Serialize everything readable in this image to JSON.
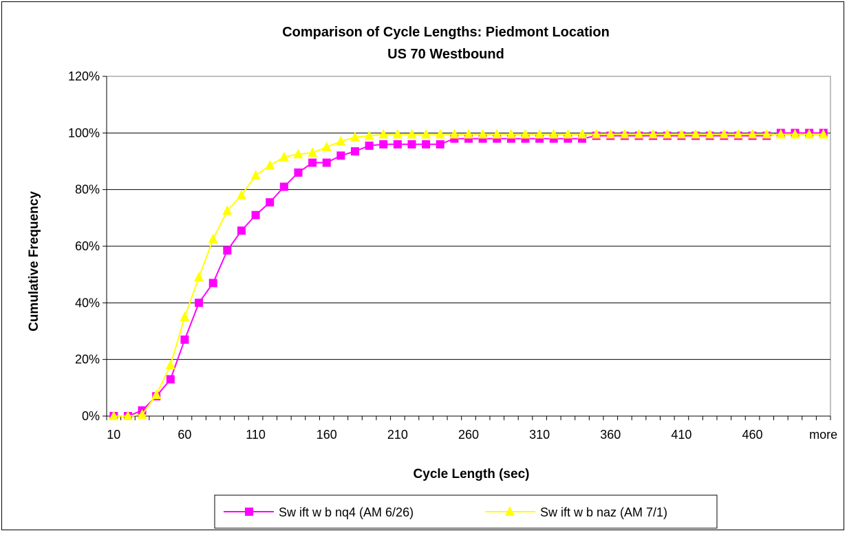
{
  "chart_data": {
    "type": "line",
    "title": "Comparison of Cycle Lengths: Piedmont Location",
    "subtitle": "US 70 Westbound",
    "xlabel": "Cycle Length (sec)",
    "ylabel": "Cumulative Frequency",
    "categories": [
      "10",
      "20",
      "30",
      "40",
      "50",
      "60",
      "70",
      "80",
      "90",
      "100",
      "110",
      "120",
      "130",
      "140",
      "150",
      "160",
      "170",
      "180",
      "190",
      "200",
      "210",
      "220",
      "230",
      "240",
      "250",
      "260",
      "270",
      "280",
      "290",
      "300",
      "310",
      "320",
      "330",
      "340",
      "350",
      "360",
      "370",
      "380",
      "390",
      "400",
      "410",
      "420",
      "430",
      "440",
      "450",
      "460",
      "470",
      "480",
      "490",
      "500",
      "more"
    ],
    "x_tick_labels": [
      "10",
      "60",
      "110",
      "160",
      "210",
      "260",
      "310",
      "360",
      "410",
      "460",
      "more"
    ],
    "y_tick_labels": [
      "0%",
      "20%",
      "40%",
      "60%",
      "80%",
      "100%",
      "120%"
    ],
    "ylim": [
      0,
      1.2
    ],
    "grid": "horizontal",
    "legend_position": "bottom",
    "series": [
      {
        "name": "Swift w b nq4 (AM 6/26)",
        "color": "#ff00ff",
        "marker": "square",
        "values": [
          0,
          0,
          0.02,
          0.07,
          0.13,
          0.27,
          0.4,
          0.47,
          0.585,
          0.655,
          0.71,
          0.755,
          0.81,
          0.86,
          0.895,
          0.895,
          0.92,
          0.935,
          0.955,
          0.96,
          0.96,
          0.96,
          0.96,
          0.96,
          0.98,
          0.98,
          0.98,
          0.98,
          0.98,
          0.98,
          0.98,
          0.98,
          0.98,
          0.98,
          0.99,
          0.99,
          0.99,
          0.99,
          0.99,
          0.99,
          0.99,
          0.99,
          0.99,
          0.99,
          0.99,
          0.99,
          0.99,
          1.0,
          1.0,
          1.0,
          1.0
        ]
      },
      {
        "name": "Sw ift w b naz (AM 7/1)",
        "color": "#ffff00",
        "marker": "triangle",
        "values": [
          0,
          0,
          0.005,
          0.075,
          0.18,
          0.35,
          0.49,
          0.625,
          0.725,
          0.78,
          0.85,
          0.885,
          0.915,
          0.925,
          0.93,
          0.95,
          0.97,
          0.985,
          0.99,
          0.995,
          0.995,
          0.995,
          0.995,
          0.995,
          0.995,
          0.995,
          0.995,
          0.995,
          0.995,
          0.995,
          0.995,
          0.995,
          0.995,
          0.995,
          0.995,
          0.995,
          0.995,
          0.995,
          0.995,
          0.995,
          0.995,
          0.995,
          0.995,
          0.995,
          0.995,
          0.995,
          0.995,
          0.995,
          0.995,
          0.995,
          0.995
        ]
      }
    ]
  },
  "legend": {
    "items": [
      "Sw ift w b nq4 (AM 6/26)",
      "Sw ift w b naz (AM 7/1)"
    ]
  }
}
